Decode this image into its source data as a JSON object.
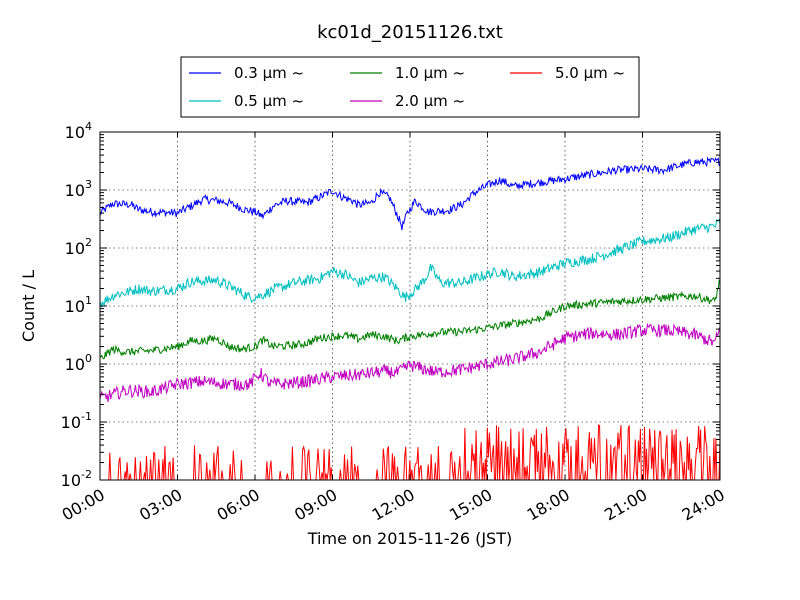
{
  "chart_data": {
    "type": "line",
    "title": "kc01d_20151126.txt",
    "xlabel": "Time on 2015-11-26 (JST)",
    "ylabel": "Count / L",
    "x_ticks": [
      "00:00",
      "03:00",
      "06:00",
      "09:00",
      "12:00",
      "15:00",
      "18:00",
      "21:00",
      "24:00"
    ],
    "xlim_hours": [
      0,
      24
    ],
    "y_scale": "log",
    "ylim": [
      0.01,
      10000
    ],
    "y_ticks": [
      {
        "base": "10",
        "exp": "-2",
        "value": 0.01
      },
      {
        "base": "10",
        "exp": "-1",
        "value": 0.1
      },
      {
        "base": "10",
        "exp": "0",
        "value": 1
      },
      {
        "base": "10",
        "exp": "1",
        "value": 10
      },
      {
        "base": "10",
        "exp": "2",
        "value": 100
      },
      {
        "base": "10",
        "exp": "3",
        "value": 1000
      },
      {
        "base": "10",
        "exp": "4",
        "value": 10000
      }
    ],
    "grid": true,
    "legend_position": "top-center",
    "series": [
      {
        "name": "0.3 µm ~",
        "color": "#0000ff",
        "noise": 0.07,
        "points": [
          [
            0,
            400
          ],
          [
            0.5,
            580
          ],
          [
            1.2,
            560
          ],
          [
            1.5,
            460
          ],
          [
            2,
            420
          ],
          [
            3,
            400
          ],
          [
            3.5,
            520
          ],
          [
            4,
            690
          ],
          [
            4.6,
            650
          ],
          [
            5,
            600
          ],
          [
            5.6,
            460
          ],
          [
            6,
            420
          ],
          [
            6.3,
            350
          ],
          [
            6.7,
            530
          ],
          [
            7.2,
            650
          ],
          [
            8,
            600
          ],
          [
            8.5,
            750
          ],
          [
            9,
            980
          ],
          [
            9.4,
            750
          ],
          [
            9.8,
            650
          ],
          [
            10,
            550
          ],
          [
            10.5,
            600
          ],
          [
            10.8,
            900
          ],
          [
            11.2,
            750
          ],
          [
            11.5,
            380
          ],
          [
            11.7,
            230
          ],
          [
            11.9,
            400
          ],
          [
            12.2,
            650
          ],
          [
            12.7,
            420
          ],
          [
            13.5,
            450
          ],
          [
            14,
            560
          ],
          [
            14.5,
            900
          ],
          [
            15,
            1200
          ],
          [
            15.5,
            1500
          ],
          [
            16,
            1150
          ],
          [
            16.5,
            1250
          ],
          [
            17,
            1350
          ],
          [
            18,
            1550
          ],
          [
            19,
            1850
          ],
          [
            20,
            2200
          ],
          [
            21,
            2300
          ],
          [
            21.8,
            2200
          ],
          [
            22.5,
            2700
          ],
          [
            23,
            3000
          ],
          [
            24,
            3100
          ]
        ]
      },
      {
        "name": "0.5 µm ~",
        "color": "#00bfbf",
        "noise": 0.09,
        "points": [
          [
            0,
            11
          ],
          [
            0.6,
            16
          ],
          [
            1,
            17
          ],
          [
            1.5,
            20
          ],
          [
            2,
            18
          ],
          [
            3,
            20
          ],
          [
            3.5,
            26
          ],
          [
            4.5,
            28
          ],
          [
            5,
            22
          ],
          [
            5.8,
            14
          ],
          [
            6.2,
            15
          ],
          [
            6.7,
            19
          ],
          [
            7.5,
            25
          ],
          [
            8.5,
            30
          ],
          [
            9,
            40
          ],
          [
            9.5,
            35
          ],
          [
            10,
            25
          ],
          [
            10.5,
            30
          ],
          [
            11,
            32
          ],
          [
            11.5,
            20
          ],
          [
            11.8,
            14
          ],
          [
            12.2,
            19
          ],
          [
            12.6,
            30
          ],
          [
            12.8,
            45
          ],
          [
            13.2,
            25
          ],
          [
            14,
            25
          ],
          [
            14.5,
            30
          ],
          [
            15,
            35
          ],
          [
            15.5,
            40
          ],
          [
            16,
            32
          ],
          [
            17,
            38
          ],
          [
            18,
            55
          ],
          [
            19,
            65
          ],
          [
            20,
            90
          ],
          [
            21,
            130
          ],
          [
            22,
            150
          ],
          [
            23,
            210
          ],
          [
            23.8,
            240
          ],
          [
            24,
            280
          ]
        ]
      },
      {
        "name": "1.0 µm ~",
        "color": "#007f00",
        "noise": 0.07,
        "points": [
          [
            0,
            1.2
          ],
          [
            0.5,
            1.8
          ],
          [
            1,
            1.6
          ],
          [
            2,
            1.7
          ],
          [
            3,
            2
          ],
          [
            3.5,
            2.5
          ],
          [
            4,
            2.5
          ],
          [
            4.5,
            2.8
          ],
          [
            5,
            2
          ],
          [
            5.5,
            1.8
          ],
          [
            6,
            2
          ],
          [
            6.3,
            2.6
          ],
          [
            6.7,
            2
          ],
          [
            7.5,
            2.1
          ],
          [
            8,
            2.3
          ],
          [
            8.5,
            2.8
          ],
          [
            9,
            3
          ],
          [
            9.5,
            3.1
          ],
          [
            10,
            2.7
          ],
          [
            10.5,
            3.2
          ],
          [
            11,
            3
          ],
          [
            11.5,
            2.5
          ],
          [
            12,
            3
          ],
          [
            12.5,
            3.2
          ],
          [
            13,
            3.5
          ],
          [
            14,
            3.6
          ],
          [
            15,
            4.2
          ],
          [
            16,
            5
          ],
          [
            17,
            6
          ],
          [
            18,
            10
          ],
          [
            19,
            11
          ],
          [
            20,
            12
          ],
          [
            21,
            13
          ],
          [
            22,
            14
          ],
          [
            23,
            15
          ],
          [
            23.8,
            12
          ],
          [
            24,
            28
          ]
        ]
      },
      {
        "name": "2.0 µm ~",
        "color": "#bf00bf",
        "noise": 0.11,
        "points": [
          [
            0,
            0.25
          ],
          [
            1,
            0.35
          ],
          [
            2,
            0.33
          ],
          [
            3,
            0.45
          ],
          [
            4,
            0.5
          ],
          [
            5,
            0.45
          ],
          [
            5.8,
            0.45
          ],
          [
            6.2,
            0.7
          ],
          [
            6.6,
            0.45
          ],
          [
            7,
            0.45
          ],
          [
            8,
            0.5
          ],
          [
            9,
            0.6
          ],
          [
            10,
            0.65
          ],
          [
            11,
            0.75
          ],
          [
            11.5,
            0.7
          ],
          [
            12,
            0.95
          ],
          [
            13,
            0.72
          ],
          [
            14,
            0.8
          ],
          [
            15,
            1
          ],
          [
            16,
            1.2
          ],
          [
            17,
            1.6
          ],
          [
            18,
            2.8
          ],
          [
            19,
            3.4
          ],
          [
            20,
            3.2
          ],
          [
            21,
            3.8
          ],
          [
            22,
            3.8
          ],
          [
            23,
            3.2
          ],
          [
            23.8,
            2.3
          ],
          [
            24,
            4
          ]
        ]
      },
      {
        "name": "5.0 µm ~",
        "color": "#ff0000",
        "noise": 0,
        "points": []
      }
    ]
  },
  "chart_meta": {
    "series_display_order": [
      0,
      2,
      4,
      1,
      3
    ]
  }
}
